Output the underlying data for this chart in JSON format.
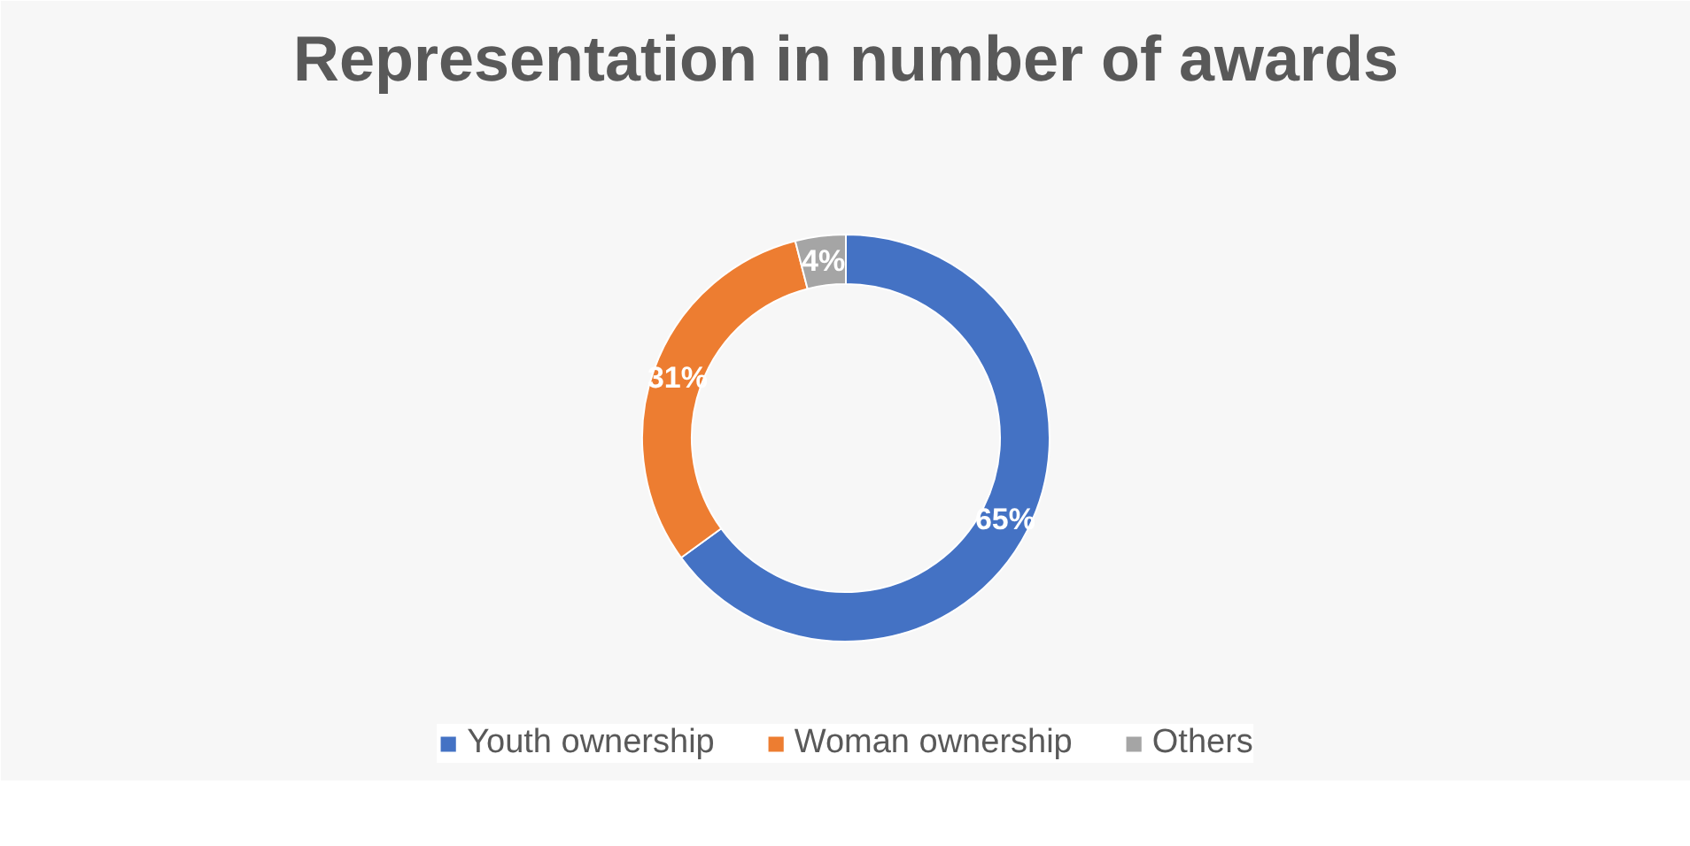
{
  "chart_data": {
    "type": "donut",
    "title": "Representation in number of awards",
    "categories": [
      "Youth ownership",
      "Woman ownership",
      "Others"
    ],
    "values": [
      65,
      31,
      4
    ],
    "colors": [
      "#4472c4",
      "#ed7d31",
      "#a5a5a5"
    ],
    "value_labels": [
      "65%",
      "31%",
      "4%"
    ],
    "legend": "bottom"
  }
}
